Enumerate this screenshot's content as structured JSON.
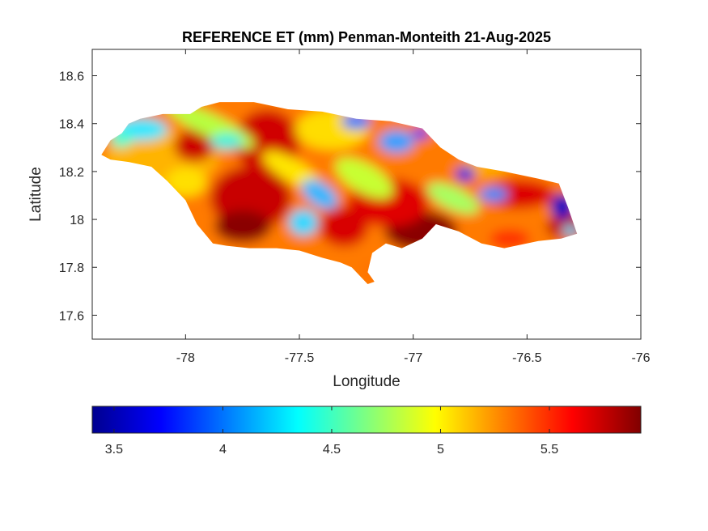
{
  "title": "REFERENCE ET (mm) Penman-Monteith 21-Aug-2025",
  "axes": {
    "xlabel": "Longitude",
    "ylabel": "Latitude",
    "xlim": [
      -78.41,
      -76.0
    ],
    "ylim": [
      17.5,
      18.71
    ],
    "xticks": [
      {
        "value": -78,
        "label": "-78"
      },
      {
        "value": -77.5,
        "label": "-77.5"
      },
      {
        "value": -77,
        "label": "-77"
      },
      {
        "value": -76.5,
        "label": "-76.5"
      },
      {
        "value": -76,
        "label": "-76"
      }
    ],
    "yticks": [
      {
        "value": 18.6,
        "label": "18.6"
      },
      {
        "value": 18.4,
        "label": "18.4"
      },
      {
        "value": 18.2,
        "label": "18.2"
      },
      {
        "value": 18.0,
        "label": "18"
      },
      {
        "value": 17.8,
        "label": "17.8"
      },
      {
        "value": 17.6,
        "label": "17.6"
      }
    ]
  },
  "colorbar": {
    "colormap": "jet",
    "range": [
      3.4,
      5.92
    ],
    "ticks": [
      {
        "value": 3.5,
        "label": "3.5"
      },
      {
        "value": 4.0,
        "label": "4"
      },
      {
        "value": 4.5,
        "label": "4.5"
      },
      {
        "value": 5.0,
        "label": "5"
      },
      {
        "value": 5.5,
        "label": "5.5"
      }
    ],
    "colors": [
      "#00008f",
      "#0000ff",
      "#00ffff",
      "#ffff00",
      "#ff0000",
      "#800000"
    ]
  },
  "chart_data": {
    "type": "heatmap",
    "variable": "Reference evapotranspiration (mm)",
    "method": "Penman-Monteith",
    "date": "21-Aug-2025",
    "region": "Jamaica",
    "value_range": [
      3.4,
      5.92
    ],
    "boundary": [
      [
        -78.37,
        18.27
      ],
      [
        -78.33,
        18.33
      ],
      [
        -78.28,
        18.36
      ],
      [
        -78.25,
        18.4
      ],
      [
        -78.2,
        18.42
      ],
      [
        -78.1,
        18.44
      ],
      [
        -77.98,
        18.44
      ],
      [
        -77.93,
        18.47
      ],
      [
        -77.85,
        18.49
      ],
      [
        -77.7,
        18.49
      ],
      [
        -77.55,
        18.46
      ],
      [
        -77.4,
        18.45
      ],
      [
        -77.25,
        18.42
      ],
      [
        -77.1,
        18.41
      ],
      [
        -76.96,
        18.38
      ],
      [
        -76.88,
        18.3
      ],
      [
        -76.8,
        18.25
      ],
      [
        -76.72,
        18.22
      ],
      [
        -76.6,
        18.2
      ],
      [
        -76.45,
        18.17
      ],
      [
        -76.36,
        18.15
      ],
      [
        -76.32,
        18.05
      ],
      [
        -76.28,
        17.94
      ],
      [
        -76.35,
        17.92
      ],
      [
        -76.45,
        17.91
      ],
      [
        -76.6,
        17.88
      ],
      [
        -76.7,
        17.9
      ],
      [
        -76.8,
        17.95
      ],
      [
        -76.9,
        17.98
      ],
      [
        -76.96,
        17.92
      ],
      [
        -77.05,
        17.88
      ],
      [
        -77.12,
        17.9
      ],
      [
        -77.18,
        17.86
      ],
      [
        -77.2,
        17.78
      ],
      [
        -77.17,
        17.74
      ],
      [
        -77.2,
        17.73
      ],
      [
        -77.27,
        17.8
      ],
      [
        -77.32,
        17.82
      ],
      [
        -77.4,
        17.84
      ],
      [
        -77.5,
        17.87
      ],
      [
        -77.6,
        17.88
      ],
      [
        -77.72,
        17.88
      ],
      [
        -77.82,
        17.89
      ],
      [
        -77.88,
        17.9
      ],
      [
        -77.95,
        17.98
      ],
      [
        -78.0,
        18.08
      ],
      [
        -78.08,
        18.16
      ],
      [
        -78.15,
        18.22
      ],
      [
        -78.25,
        18.24
      ],
      [
        -78.33,
        18.25
      ]
    ]
  }
}
